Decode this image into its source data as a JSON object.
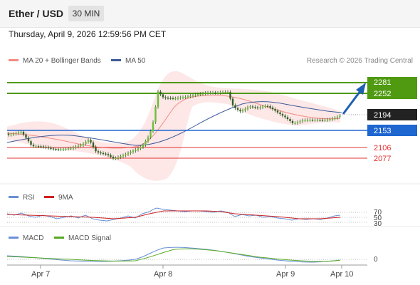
{
  "header": {
    "pair": "Ether / USD",
    "interval": "30 MIN"
  },
  "datetime": "Thursday, April 9, 2026 12:59:56 PM CET",
  "legend": {
    "ma20": {
      "label": "MA 20 + Bollinger Bands",
      "color": "#f28b82"
    },
    "ma50": {
      "label": "MA 50",
      "color": "#3d5a99"
    }
  },
  "credit": "Research © 2026 Trading Central",
  "levels": {
    "r2": "2281",
    "r1": "2252",
    "last": "2194",
    "s1": "2153",
    "s2": "2106",
    "s3": "2077"
  },
  "rsi": {
    "rsi_label": "RSI",
    "ma_label": "9MA",
    "rsi_color": "#6a8fd6",
    "ma_color": "#cc2222",
    "ticks": [
      "70",
      "50",
      "30"
    ]
  },
  "macd": {
    "macd_label": "MACD",
    "signal_label": "MACD Signal",
    "macd_color": "#6a8fd6",
    "signal_color": "#55aa22",
    "ticks": [
      "0"
    ]
  },
  "xaxis": {
    "ticks": [
      "Apr 7",
      "Apr 8",
      "Apr 9",
      "Apr 10"
    ]
  },
  "colors": {
    "green": "#4f9a11",
    "blue": "#1e66d0",
    "dark": "#222222",
    "red": "#e33333",
    "candle": "#3a7d2a"
  }
}
